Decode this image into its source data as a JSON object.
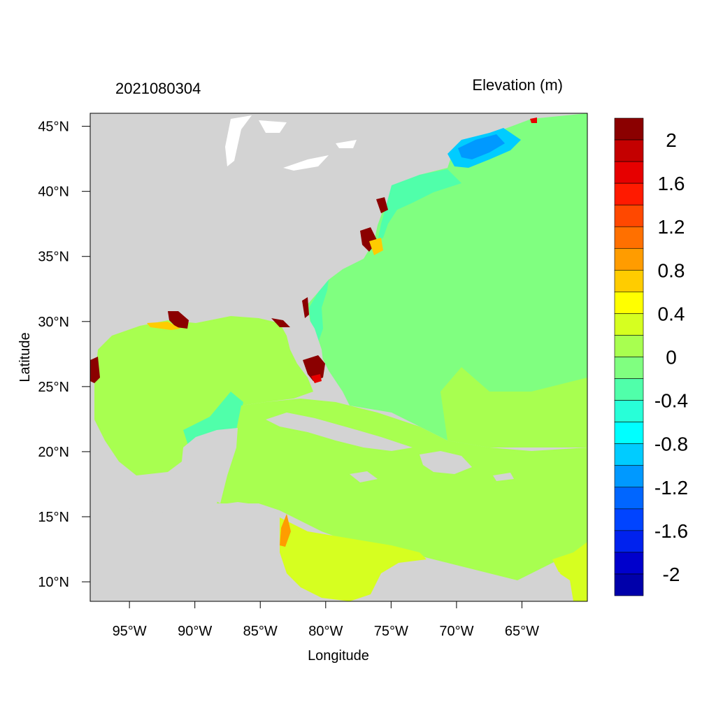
{
  "header": {
    "date_label": "2021080304",
    "variable_label": "Elevation (m)"
  },
  "axes": {
    "xlabel": "Longitude",
    "ylabel": "Latitude",
    "xlim": [
      -98,
      -60
    ],
    "ylim": [
      8.5,
      46
    ],
    "x_ticks": [
      {
        "value": -95,
        "label": "95°W"
      },
      {
        "value": -90,
        "label": "90°W"
      },
      {
        "value": -85,
        "label": "85°W"
      },
      {
        "value": -80,
        "label": "80°W"
      },
      {
        "value": -75,
        "label": "75°W"
      },
      {
        "value": -70,
        "label": "70°W"
      },
      {
        "value": -65,
        "label": "65°W"
      }
    ],
    "y_ticks": [
      {
        "value": 45,
        "label": "45°N"
      },
      {
        "value": 40,
        "label": "40°N"
      },
      {
        "value": 35,
        "label": "35°N"
      },
      {
        "value": 30,
        "label": "30°N"
      },
      {
        "value": 25,
        "label": "25°N"
      },
      {
        "value": 20,
        "label": "20°N"
      },
      {
        "value": 15,
        "label": "15°N"
      },
      {
        "value": 10,
        "label": "10°N"
      }
    ]
  },
  "colorbar": {
    "labels": [
      "2",
      "1.6",
      "1.2",
      "0.8",
      "0.4",
      "0",
      "-0.4",
      "-0.8",
      "-1.2",
      "-1.6",
      "-2"
    ],
    "colors_top_to_bottom": [
      "#8b0000",
      "#c40000",
      "#e60000",
      "#ff1a00",
      "#ff4800",
      "#ff7000",
      "#ff9c00",
      "#ffcc00",
      "#ffff00",
      "#d6ff20",
      "#a8ff50",
      "#80ff80",
      "#50ffaa",
      "#28ffd8",
      "#00ffff",
      "#00ccff",
      "#0099ff",
      "#0066ff",
      "#0044ff",
      "#0022ee",
      "#0000cc",
      "#0000aa"
    ]
  },
  "map_colors": {
    "land": "#d3d3d3",
    "atlantic_zero": "#80ff80",
    "gulf_caribbean": "#a8ff50",
    "south_caribbean": "#d6ff20",
    "shelf_negative": "#50ffaa",
    "gulf_of_maine": "#00ccff",
    "coastal_high": "#8b0000"
  }
}
